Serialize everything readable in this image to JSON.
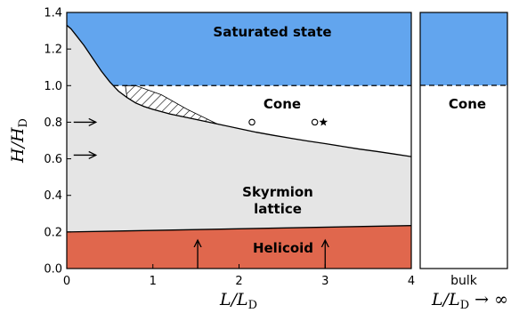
{
  "chart_data": {
    "type": "area",
    "xlim": [
      0,
      4
    ],
    "ylim": [
      0,
      1.4
    ],
    "xticks": [
      "0",
      "1",
      "2",
      "3",
      "4"
    ],
    "yticks": [
      "0.0",
      "0.2",
      "0.4",
      "0.6",
      "0.8",
      "1.0",
      "1.2",
      "1.4"
    ],
    "ylabel_main": "H/H",
    "ylabel_sub": "D",
    "xlabel_main": "L/L",
    "xlabel_sub": "D",
    "bulk_xlabel_main": "L/L",
    "bulk_xlabel_sub": "D",
    "bulk_xlabel_suffix": " → ∞",
    "bulk_tick": "bulk",
    "colors": {
      "saturated": "#62a5ee",
      "skyrmion": "#e5e5e5",
      "helicoid": "#e0674d",
      "cone": "#ffffff"
    },
    "regions": {
      "saturated": "Saturated state",
      "cone": "Cone",
      "skyrmion_line1": "Skyrmion",
      "skyrmion_line2": "lattice",
      "helicoid": "Helicoid",
      "bulk_cone": "Cone"
    },
    "saturation_field": 1.0,
    "boundary_skyrmion_upper": [
      [
        0.0,
        1.33
      ],
      [
        0.05,
        1.31
      ],
      [
        0.1,
        1.28
      ],
      [
        0.2,
        1.22
      ],
      [
        0.3,
        1.15
      ],
      [
        0.4,
        1.08
      ],
      [
        0.5,
        1.02
      ],
      [
        0.6,
        0.97
      ],
      [
        0.7,
        0.935
      ],
      [
        0.8,
        0.905
      ],
      [
        0.9,
        0.885
      ],
      [
        1.0,
        0.87
      ],
      [
        1.2,
        0.845
      ],
      [
        1.4,
        0.825
      ],
      [
        1.6,
        0.805
      ],
      [
        1.8,
        0.785
      ],
      [
        2.0,
        0.765
      ],
      [
        2.2,
        0.745
      ],
      [
        2.4,
        0.728
      ],
      [
        2.6,
        0.712
      ],
      [
        2.8,
        0.697
      ],
      [
        3.0,
        0.683
      ],
      [
        3.2,
        0.668
      ],
      [
        3.4,
        0.653
      ],
      [
        3.6,
        0.64
      ],
      [
        3.8,
        0.626
      ],
      [
        4.0,
        0.612
      ]
    ],
    "boundary_helicoid_upper": [
      [
        0.0,
        0.2
      ],
      [
        4.0,
        0.235
      ]
    ],
    "hatched_region": [
      [
        0.68,
        1.0
      ],
      [
        0.8,
        1.0
      ],
      [
        1.1,
        0.95
      ],
      [
        1.4,
        0.87
      ],
      [
        1.75,
        0.79
      ]
    ],
    "markers": [
      {
        "symbol": "circle",
        "x": 2.15,
        "y": 0.8
      },
      {
        "symbol": "circle",
        "x": 2.88,
        "y": 0.8
      },
      {
        "symbol": "star",
        "x": 2.98,
        "y": 0.8
      }
    ],
    "arrows": [
      {
        "direction": "right",
        "x": 0.08,
        "y": 0.8
      },
      {
        "direction": "right",
        "x": 0.08,
        "y": 0.62
      },
      {
        "direction": "up",
        "x": 1.52,
        "y": 0.1
      },
      {
        "direction": "up",
        "x": 3.0,
        "y": 0.1
      }
    ]
  }
}
